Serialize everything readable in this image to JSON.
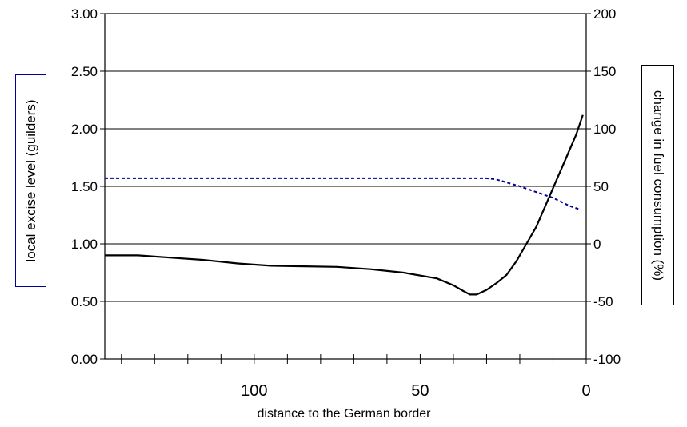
{
  "chart_data": {
    "type": "line",
    "xlabel": "distance to the German border",
    "ylabel": "local excise level (guilders)",
    "y2label": "change in fuel consumption (%)",
    "x_reversed": true,
    "xlim": [
      145,
      0
    ],
    "x_ticks": [
      100,
      50,
      0
    ],
    "x_tick_labels": [
      "100",
      "50",
      "0"
    ],
    "ylim": [
      0,
      3
    ],
    "y_ticks": [
      0,
      0.5,
      1,
      1.5,
      2,
      2.5,
      3
    ],
    "y_tick_labels": [
      "0.00",
      "0.50",
      "1.00",
      "1.50",
      "2.00",
      "2.50",
      "3.00"
    ],
    "y2lim": [
      -100,
      200
    ],
    "y2_ticks": [
      -100,
      -50,
      0,
      50,
      100,
      150,
      200
    ],
    "y2_tick_labels": [
      "-100",
      "-50",
      "0",
      "50",
      "100",
      "150",
      "200"
    ],
    "grid": true,
    "series": [
      {
        "axis": "left",
        "style": "dashed",
        "color": "#00009a",
        "x": [
          145,
          120,
          100,
          80,
          60,
          40,
          30,
          27,
          20,
          15,
          10,
          5,
          2
        ],
        "y": [
          1.57,
          1.57,
          1.57,
          1.57,
          1.57,
          1.57,
          1.57,
          1.56,
          1.5,
          1.45,
          1.4,
          1.33,
          1.3
        ]
      },
      {
        "axis": "right",
        "style": "solid",
        "color": "#000000",
        "x": [
          145,
          135,
          125,
          115,
          105,
          95,
          85,
          75,
          65,
          55,
          45,
          40,
          37,
          35,
          33,
          30,
          27,
          24,
          21,
          18,
          15,
          12,
          9,
          6,
          3,
          1
        ],
        "y": [
          -10,
          -10,
          -12,
          -14,
          -17,
          -19,
          -19.5,
          -20,
          -22,
          -25,
          -30,
          -36,
          -41,
          -44,
          -44,
          -40,
          -34,
          -27,
          -15,
          0,
          15,
          35,
          55,
          75,
          95,
          112
        ]
      }
    ]
  }
}
